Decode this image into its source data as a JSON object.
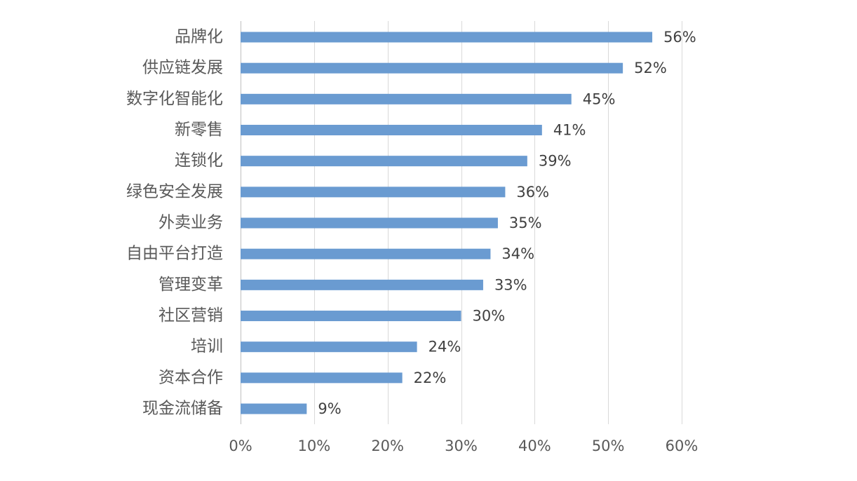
{
  "chart_data": {
    "type": "bar",
    "orientation": "horizontal",
    "title": "",
    "xlabel": "",
    "ylabel": "",
    "categories": [
      "品牌化",
      "供应链发展",
      "数字化智能化",
      "新零售",
      "连锁化",
      "绿色安全发展",
      "外卖业务",
      "自由平台打造",
      "管理变革",
      "社区营销",
      "培训",
      "资本合作",
      "现金流储备"
    ],
    "values": [
      56,
      52,
      45,
      41,
      39,
      36,
      35,
      34,
      33,
      30,
      24,
      22,
      9
    ],
    "value_labels": [
      "56%",
      "52%",
      "45%",
      "41%",
      "39%",
      "36%",
      "35%",
      "34%",
      "33%",
      "30%",
      "24%",
      "22%",
      "9%"
    ],
    "xlim": [
      0,
      60
    ],
    "x_ticks": [
      0,
      10,
      20,
      30,
      40,
      50,
      60
    ],
    "x_tick_labels": [
      "0%",
      "10%",
      "20%",
      "30%",
      "40%",
      "50%",
      "60%"
    ],
    "grid": "vertical",
    "legend": "none",
    "bar_color": "#6a9bd1"
  }
}
